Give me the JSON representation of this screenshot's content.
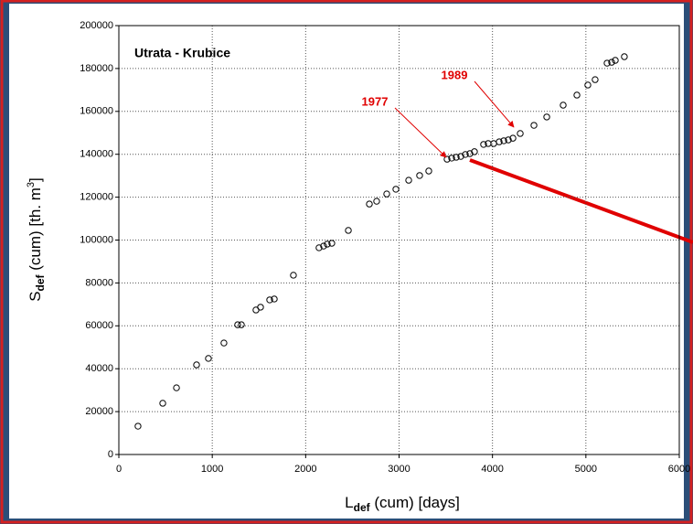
{
  "chart_data": {
    "type": "scatter",
    "title": "Utrata - Krubice",
    "x_label": {
      "main": "L",
      "sub": "def",
      "rest": " (cum) [days]"
    },
    "y_label": {
      "main": "S",
      "sub": "def",
      "rest": " (cum) [th. m",
      "sup": "3",
      "end": "]"
    },
    "annotations": [
      "1977",
      "1989"
    ],
    "x": [
      205,
      470,
      617,
      832,
      959,
      1125,
      1272,
      1312,
      1468,
      1517,
      1615,
      1664,
      1869,
      2143,
      2192,
      2231,
      2280,
      2457,
      2682,
      2760,
      2868,
      2966,
      3103,
      3220,
      3318,
      3514,
      3563,
      3612,
      3661,
      3710,
      3758,
      3807,
      3905,
      3954,
      4013,
      4072,
      4121,
      4170,
      4219,
      4297,
      4444,
      4581,
      4757,
      4904,
      5021,
      5099,
      5227,
      5276,
      5315,
      5412
    ],
    "values": [
      13200,
      23900,
      31100,
      41800,
      44800,
      52000,
      60500,
      60500,
      67400,
      68700,
      72100,
      72500,
      83600,
      96400,
      97200,
      98100,
      98500,
      104500,
      116800,
      118100,
      121500,
      123700,
      127900,
      130100,
      132200,
      137700,
      138200,
      138600,
      139000,
      139900,
      140300,
      141200,
      144600,
      145000,
      145000,
      145800,
      146300,
      146700,
      147500,
      149700,
      153500,
      157400,
      162900,
      167600,
      172300,
      174800,
      182500,
      182900,
      183800,
      185500
    ],
    "color": "#000000",
    "xlim": [
      0,
      6000
    ],
    "xticks": [
      0,
      1000,
      2000,
      3000,
      4000,
      5000,
      6000
    ],
    "ylim": [
      0,
      200000
    ],
    "yticks": [
      0,
      20000,
      40000,
      60000,
      80000,
      100000,
      120000,
      140000,
      160000,
      180000,
      200000
    ],
    "grid": true
  }
}
